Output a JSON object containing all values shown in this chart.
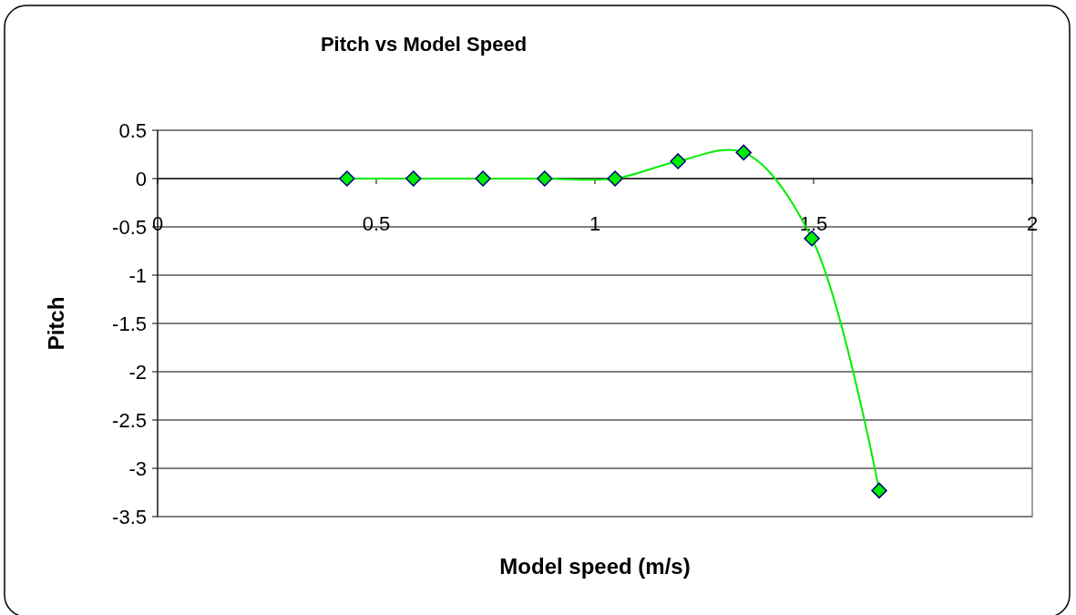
{
  "chart_data": {
    "type": "line",
    "title": "Pitch vs Model Speed",
    "xlabel": "Model speed (m/s)",
    "ylabel": "Pitch",
    "x": [
      0.433,
      0.585,
      0.744,
      0.885,
      1.046,
      1.19,
      1.34,
      1.496,
      1.65
    ],
    "series": [
      {
        "color": "#00ee00",
        "values": [
          0,
          0,
          0,
          0,
          0,
          0.18,
          0.27,
          -0.62,
          -3.23
        ]
      }
    ],
    "xlim": [
      0,
      2
    ],
    "xticks": [
      0,
      0.5,
      1,
      1.5,
      2
    ],
    "ylim": [
      -3.5,
      0.5
    ],
    "yticks": [
      0.5,
      0,
      -0.5,
      -1,
      -1.5,
      -2,
      -2.5,
      -3,
      -3.5
    ],
    "grid": "y",
    "marker": "diamond",
    "line_style": "solid"
  }
}
